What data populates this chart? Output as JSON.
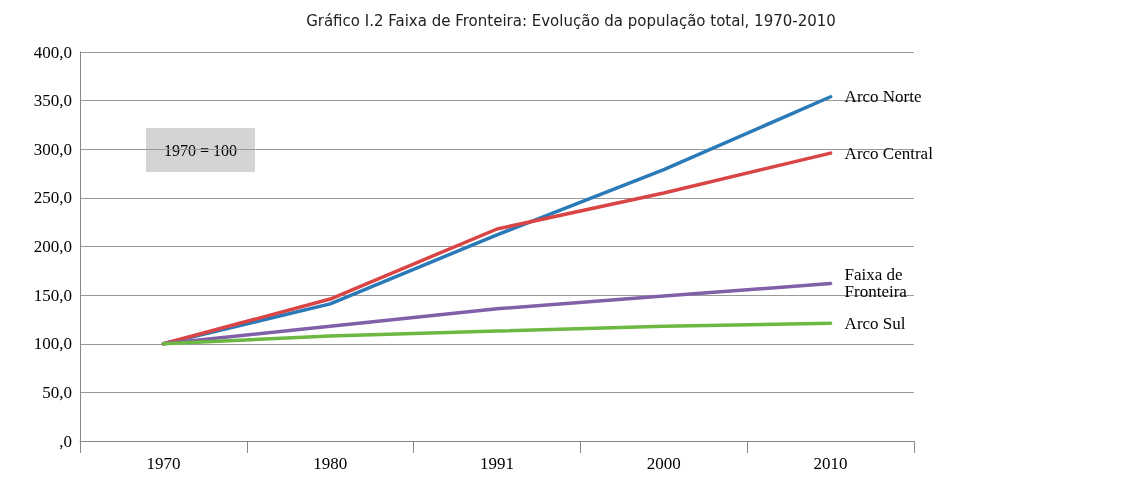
{
  "chart_data": {
    "type": "line",
    "title": "Gráfico I.2 Faixa de Fronteira: Evolução da população total, 1970-2010",
    "categories": [
      "1970",
      "1980",
      "1991",
      "2000",
      "2010"
    ],
    "series": [
      {
        "name": "Arco Norte",
        "color": "#2a7ab8",
        "values": [
          100,
          141,
          212,
          279,
          354
        ]
      },
      {
        "name": "Arco Central",
        "color": "#d94545",
        "values": [
          100,
          146,
          218,
          255,
          296
        ]
      },
      {
        "name": "Faixa de Fronteira",
        "color": "#8060a8",
        "values": [
          100,
          118,
          136,
          149,
          162
        ]
      },
      {
        "name": "Arco Sul",
        "color": "#6cb842",
        "values": [
          100,
          108,
          113,
          118,
          121
        ]
      }
    ],
    "ylim": [
      0,
      400
    ],
    "yticks": [
      {
        "value": 0,
        "label": ",0"
      },
      {
        "value": 50,
        "label": "50,0"
      },
      {
        "value": 100,
        "label": "100,0"
      },
      {
        "value": 150,
        "label": "150,0"
      },
      {
        "value": 200,
        "label": "200,0"
      },
      {
        "value": 250,
        "label": "250,0"
      },
      {
        "value": 300,
        "label": "300,0"
      },
      {
        "value": 350,
        "label": "350,0"
      },
      {
        "value": 400,
        "label": "400,0"
      }
    ],
    "annotations": [
      "1970 = 100"
    ],
    "grid": "y",
    "legend": false,
    "marker": "none",
    "line_style": "solid"
  }
}
